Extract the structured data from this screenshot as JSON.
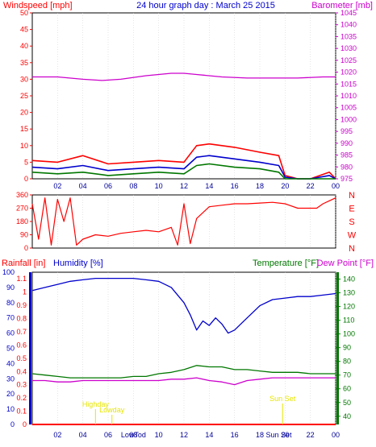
{
  "colors": {
    "red": "#ff0000",
    "blue": "#0000cc",
    "green": "#007700",
    "magenta": "#cc00cc",
    "yellow": "#e6e600",
    "frame": "#000000",
    "grid": "#cccccc"
  },
  "x_ticks": [
    "02",
    "04",
    "06",
    "08",
    "10",
    "12",
    "14",
    "16",
    "18",
    "20",
    "22",
    "00"
  ],
  "chart_data": [
    {
      "type": "line",
      "title": "24 hour graph day : March 25 2015",
      "left_axis_label": "Windspeed [mph]",
      "right_axis_label": "Barometer [mb]",
      "left_ticks": [
        "0",
        "5",
        "10",
        "15",
        "20",
        "25",
        "30",
        "35",
        "40",
        "45",
        "50"
      ],
      "right_ticks": [
        "975",
        "980",
        "985",
        "990",
        "995",
        "1000",
        "1005",
        "1010",
        "1015",
        "1020",
        "1025",
        "1030",
        "1035",
        "1040",
        "1045"
      ],
      "ylim_left": [
        0,
        50
      ],
      "ylim_right": [
        975,
        1045
      ],
      "x_hours": [
        0,
        24
      ],
      "series": [
        {
          "name": "wind_gust",
          "color": "red",
          "axis": "left",
          "x": [
            0,
            2,
            4,
            6,
            8,
            10,
            12,
            13,
            14,
            16,
            18,
            19.5,
            20,
            21,
            22,
            23.5,
            24
          ],
          "y": [
            5.5,
            5,
            7,
            4.5,
            5,
            5.5,
            5,
            10,
            10.5,
            9.5,
            8,
            7,
            1,
            0,
            0,
            2,
            0
          ]
        },
        {
          "name": "wind_avg",
          "color": "blue",
          "axis": "left",
          "x": [
            0,
            2,
            4,
            6,
            8,
            10,
            12,
            13,
            14,
            16,
            18,
            19.5,
            20,
            21,
            22,
            23.5,
            24
          ],
          "y": [
            3.5,
            3,
            4,
            2.5,
            3,
            3.5,
            3,
            6.5,
            7,
            6,
            5,
            4,
            0.5,
            0,
            0,
            1,
            0
          ]
        },
        {
          "name": "wind_low",
          "color": "green",
          "axis": "left",
          "x": [
            0,
            2,
            4,
            6,
            8,
            10,
            12,
            13,
            14,
            16,
            18,
            19.5,
            20,
            21,
            22,
            23.5,
            24
          ],
          "y": [
            2,
            1.5,
            2,
            1,
            1.5,
            2,
            1.5,
            4,
            4.5,
            3.5,
            3,
            2,
            0,
            0,
            0,
            0,
            0
          ]
        },
        {
          "name": "barometer",
          "color": "magenta",
          "axis": "right",
          "x": [
            0,
            2,
            4,
            5.5,
            7,
            9,
            11,
            12,
            13,
            15,
            17,
            19,
            21,
            23,
            24
          ],
          "y": [
            1018,
            1018,
            1017,
            1016.5,
            1017,
            1018.5,
            1019.5,
            1019.5,
            1019,
            1018,
            1017.5,
            1017.5,
            1017.5,
            1018,
            1018
          ]
        }
      ]
    },
    {
      "type": "scatter",
      "title": "",
      "left_ticks": [
        "0",
        "90",
        "180",
        "270",
        "360"
      ],
      "right_ticks": [
        "N",
        "W",
        "S",
        "E",
        "N"
      ],
      "ylim": [
        0,
        360
      ],
      "x_hours": [
        0,
        24
      ],
      "series": [
        {
          "name": "wind_direction",
          "color": "red",
          "x": [
            0,
            0.5,
            1,
            1.5,
            2,
            2.5,
            3,
            3.5,
            4,
            5,
            6,
            7,
            8,
            9,
            10,
            11,
            11.5,
            12,
            12.5,
            13,
            14,
            15,
            16,
            17,
            18,
            19,
            20,
            21,
            22,
            22.5,
            23,
            23.5,
            24
          ],
          "y": [
            300,
            60,
            340,
            20,
            330,
            180,
            340,
            20,
            60,
            90,
            80,
            100,
            110,
            120,
            110,
            140,
            20,
            300,
            30,
            200,
            280,
            290,
            300,
            300,
            305,
            310,
            300,
            270,
            270,
            270,
            300,
            320,
            340
          ]
        }
      ]
    },
    {
      "type": "line",
      "title": "",
      "left_axis_label": "Rainfall [in]",
      "left_axis_label2": "Humidity [%]",
      "right_axis_label": "Temperature [°F]",
      "right_axis_label2": "Dew Point [°F]",
      "humidity_ticks": [
        "0",
        "10",
        "20",
        "30",
        "40",
        "50",
        "60",
        "70",
        "80",
        "90",
        "100"
      ],
      "rain_ticks": [
        "0",
        "0.1",
        "0.2",
        "0.3",
        "0.4",
        "0.5",
        "0.6",
        "0.7",
        "0.8",
        "0.9",
        "1",
        "1.1"
      ],
      "temp_ticks": [
        "40",
        "50",
        "60",
        "70",
        "80",
        "90",
        "100",
        "110",
        "120",
        "130",
        "140"
      ],
      "ylim_humidity": [
        0,
        100
      ],
      "ylim_temp": [
        34,
        145
      ],
      "x_hours": [
        0,
        24
      ],
      "annotations": [
        {
          "label": "Highday",
          "hour": 5
        },
        {
          "label": "Lowday",
          "hour": 6.3
        },
        {
          "label": "Sun Set",
          "hour": 19.8
        }
      ],
      "bottom_markers": [
        {
          "label": "LowTod",
          "hour": 8
        },
        {
          "label": "Sun Set",
          "hour": 19.5
        }
      ],
      "series": [
        {
          "name": "humidity",
          "color": "blue",
          "axis": "humidity",
          "x": [
            0,
            1,
            2,
            3,
            4,
            5,
            6,
            7,
            8,
            9,
            10,
            11,
            12,
            12.5,
            13,
            13.5,
            14,
            14.5,
            15,
            15.5,
            16,
            17,
            18,
            19,
            20,
            21,
            22,
            23,
            24
          ],
          "y": [
            88,
            90,
            92,
            94,
            95,
            96,
            96,
            96,
            96,
            95,
            94,
            90,
            80,
            72,
            62,
            68,
            65,
            70,
            66,
            60,
            62,
            70,
            78,
            82,
            83,
            84,
            84,
            85,
            86
          ]
        },
        {
          "name": "temperature",
          "color": "green",
          "axis": "temp",
          "x": [
            0,
            1,
            2,
            3,
            4,
            5,
            6,
            7,
            8,
            9,
            10,
            11,
            12,
            13,
            14,
            15,
            16,
            17,
            18,
            19,
            20,
            21,
            22,
            23,
            24
          ],
          "y": [
            71,
            70,
            69,
            68,
            68,
            68,
            68,
            68,
            69,
            69,
            71,
            72,
            74,
            77,
            76,
            76,
            74,
            74,
            73,
            72,
            72,
            72,
            71,
            71,
            71
          ]
        },
        {
          "name": "dew_point",
          "color": "magenta",
          "axis": "temp",
          "x": [
            0,
            1,
            2,
            3,
            4,
            5,
            6,
            7,
            8,
            9,
            10,
            11,
            12,
            13,
            14,
            15,
            16,
            17,
            18,
            19,
            20,
            21,
            22,
            23,
            24
          ],
          "y": [
            66,
            66,
            65,
            65,
            66,
            66,
            66,
            66,
            66,
            66,
            66,
            67,
            67,
            68,
            66,
            65,
            63,
            66,
            67,
            68,
            68,
            68,
            68,
            68,
            68
          ]
        },
        {
          "name": "rainfall",
          "color": "red",
          "axis": "rain",
          "x": [
            0,
            24
          ],
          "y": [
            0,
            0
          ]
        }
      ]
    }
  ]
}
